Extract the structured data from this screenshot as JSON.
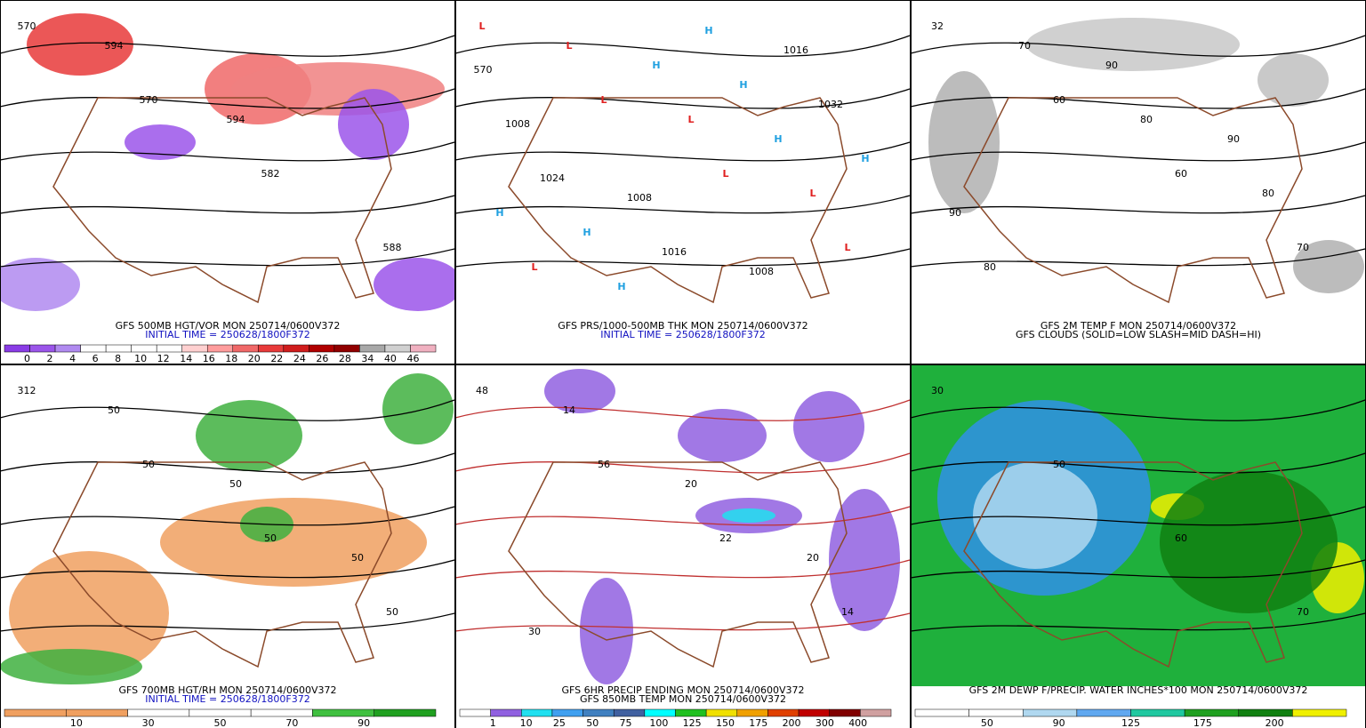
{
  "panels": [
    {
      "captions": [
        "GFS 500MB HGT/VOR MON 250714/0600V372",
        "INITIAL TIME = 250628/1800F372"
      ],
      "colorbar": {
        "colors": [
          "#8a3ce6",
          "#9b55ea",
          "#b08af0",
          "#ffffff",
          "#ffffff",
          "#ffffff",
          "#ffffff",
          "#ffd0d0",
          "#ff9c9c",
          "#f06868",
          "#e83a3a",
          "#d01c1c",
          "#b00000",
          "#900000",
          "#a8a8a8",
          "#d0d0d0",
          "#f0b0c0"
        ],
        "labels": [
          "0",
          "2",
          "4",
          "6",
          "8",
          "10",
          "12",
          "14",
          "16",
          "18",
          "20",
          "22",
          "24",
          "26",
          "28",
          "34",
          "40",
          "46"
        ]
      },
      "map_labels": [
        "570",
        "570",
        "582",
        "588",
        "594",
        "594"
      ]
    },
    {
      "captions": [
        "GFS PRS/1000-500MB THK MON 250714/0600V372",
        "INITIAL TIME = 250628/1800F372"
      ],
      "map_labels": [
        "L",
        "L",
        "L",
        "L",
        "L",
        "L",
        "L",
        "L",
        "H",
        "H",
        "H",
        "H",
        "H",
        "H",
        "H",
        "H",
        "1032",
        "1024",
        "1016",
        "1016",
        "1008",
        "1008",
        "1008",
        "570"
      ]
    },
    {
      "captions": [
        "GFS 2M TEMP F MON 250714/0600V372",
        "GFS CLOUDS (SOLID=LOW SLASH=MID DASH=HI)"
      ],
      "map_labels": [
        "32",
        "60",
        "60",
        "70",
        "70",
        "80",
        "80",
        "80",
        "90",
        "90",
        "90"
      ]
    },
    {
      "captions": [
        "GFS 700MB HGT/RH MON 250714/0600V372",
        "INITIAL TIME = 250628/1800F372"
      ],
      "colorbar": {
        "colors": [
          "#f0a060",
          "#f0a060",
          "#ffffff",
          "#ffffff",
          "#ffffff",
          "#40c040",
          "#20a020"
        ],
        "labels": [
          "10",
          "30",
          "50",
          "70",
          "90"
        ]
      },
      "map_labels": [
        "312",
        "50",
        "50",
        "50",
        "50",
        "50",
        "50"
      ]
    },
    {
      "captions": [
        "GFS 6HR PRECIP ENDING MON 250714/0600V372",
        "GFS 850MB TEMP MON 250714/0600V372"
      ],
      "colorbar": {
        "colors": [
          "#ffffff",
          "#9060e0",
          "#20e0f0",
          "#40a0f0",
          "#4080c0",
          "#4060a0",
          "#00ffff",
          "#20c020",
          "#f0e000",
          "#f0a000",
          "#e04000",
          "#c00000",
          "#800000",
          "#d0a0a0"
        ],
        "labels": [
          "1",
          "10",
          "25",
          "50",
          "75",
          "100",
          "125",
          "150",
          "175",
          "200",
          "300",
          "400"
        ]
      },
      "map_labels": [
        "48",
        "56",
        "22",
        "14",
        "14",
        "20",
        "20",
        "30"
      ]
    },
    {
      "captions": [
        "GFS 2M DEWP F/PRECIP. WATER INCHES*100 MON 250714/0600V372"
      ],
      "colorbar": {
        "colors": [
          "#ffffff",
          "#ffffff",
          "#b0d8f0",
          "#60a8f0",
          "#20c8a0",
          "#20a020",
          "#108010",
          "#f0f000"
        ],
        "labels": [
          "50",
          "90",
          "125",
          "175",
          "200"
        ]
      },
      "map_labels": [
        "30",
        "50",
        "60",
        "70"
      ]
    }
  ]
}
